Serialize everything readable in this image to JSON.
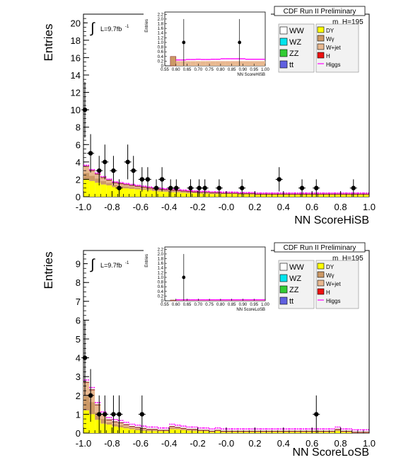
{
  "chart_data": [
    {
      "type": "bar",
      "title": "CDF Run II Preliminary",
      "mass_label": "m_H=195",
      "lumi_label": "L=9.7fb",
      "lumi_sup": "-1",
      "xlabel": "NN ScoreHiSB",
      "ylabel": "Entries",
      "xlim": [
        -1.0,
        1.0
      ],
      "ylim": [
        0,
        21
      ],
      "xticks": [
        "-1.0",
        "-0.8",
        "-0.6",
        "-0.4",
        "-0.2",
        "-0.0",
        "0.2",
        "0.4",
        "0.6",
        "0.8",
        "1.0"
      ],
      "yticks": [
        "0",
        "2",
        "4",
        "6",
        "8",
        "10",
        "12",
        "14",
        "16",
        "18",
        "20"
      ],
      "legend_left": [
        "WW",
        "WZ",
        "ZZ",
        "tt"
      ],
      "legend_right": [
        "DY",
        "Wγ",
        "W+jet",
        "H",
        "Higgs"
      ],
      "data_points": [
        {
          "x": -0.99,
          "y": 10,
          "err": 3.2
        },
        {
          "x": -0.95,
          "y": 5,
          "err": 2.2
        },
        {
          "x": -0.89,
          "y": 3,
          "err": 1.7
        },
        {
          "x": -0.85,
          "y": 4,
          "err": 2.0
        },
        {
          "x": -0.79,
          "y": 3,
          "err": 1.7
        },
        {
          "x": -0.75,
          "y": 1,
          "err": 1.0
        },
        {
          "x": -0.69,
          "y": 4,
          "err": 2.0
        },
        {
          "x": -0.65,
          "y": 3,
          "err": 1.7
        },
        {
          "x": -0.59,
          "y": 2,
          "err": 1.4
        },
        {
          "x": -0.55,
          "y": 2,
          "err": 1.4
        },
        {
          "x": -0.49,
          "y": 1,
          "err": 1.0
        },
        {
          "x": -0.45,
          "y": 2,
          "err": 1.4
        },
        {
          "x": -0.39,
          "y": 1,
          "err": 1.0
        },
        {
          "x": -0.35,
          "y": 1,
          "err": 1.0
        },
        {
          "x": -0.25,
          "y": 1,
          "err": 1.0
        },
        {
          "x": -0.19,
          "y": 1,
          "err": 1.0
        },
        {
          "x": -0.15,
          "y": 1,
          "err": 1.0
        },
        {
          "x": -0.05,
          "y": 1,
          "err": 1.0
        },
        {
          "x": 0.11,
          "y": 1,
          "err": 1.0
        },
        {
          "x": 0.37,
          "y": 2,
          "err": 1.4
        },
        {
          "x": 0.53,
          "y": 1,
          "err": 1.0
        },
        {
          "x": 0.63,
          "y": 1,
          "err": 1.0
        },
        {
          "x": 0.89,
          "y": 1,
          "err": 1.0
        }
      ],
      "bg_total": [
        3.5,
        3.0,
        2.6,
        2.2,
        1.9,
        1.6,
        1.5,
        1.4,
        1.3,
        1.2,
        1.1,
        1.0,
        0.9,
        0.85,
        0.8,
        0.75,
        0.7,
        0.65,
        0.6,
        0.55,
        0.5,
        0.5,
        0.45,
        0.45,
        0.4,
        0.4,
        0.4,
        0.35,
        0.35,
        0.35,
        0.3,
        0.3,
        0.3,
        0.3,
        0.3,
        0.3,
        0.3,
        0.3,
        0.3,
        0.3,
        0.3,
        0.3,
        0.3,
        0.3,
        0.3,
        0.3,
        0.3,
        0.3,
        0.3,
        0.3
      ],
      "bg_yellow": [
        2.0,
        1.8,
        1.6,
        1.4,
        1.3,
        1.1,
        1.0,
        0.95,
        0.9,
        0.85,
        0.8,
        0.75,
        0.65,
        0.6,
        0.55,
        0.5,
        0.5,
        0.45,
        0.4,
        0.4,
        0.35,
        0.35,
        0.3,
        0.3,
        0.3,
        0.3,
        0.3,
        0.25,
        0.25,
        0.25,
        0.2,
        0.2,
        0.2,
        0.2,
        0.2,
        0.2,
        0.2,
        0.2,
        0.2,
        0.2,
        0.2,
        0.2,
        0.2,
        0.2,
        0.2,
        0.2,
        0.2,
        0.2,
        0.2,
        0.2
      ],
      "inset": {
        "xlabel": "NN ScoreHiSB",
        "ylabel": "Entries",
        "xticks": [
          "0.55",
          "0.60",
          "0.65",
          "0.70",
          "0.75",
          "0.80",
          "0.85",
          "0.90",
          "0.95",
          "1.00"
        ],
        "yticks": [
          "0",
          "0.2",
          "0.4",
          "0.6",
          "0.8",
          "1.0",
          "1.2",
          "1.4",
          "1.6",
          "1.8",
          "2.0",
          "2.2"
        ],
        "xlim": [
          0.55,
          1.0
        ],
        "ylim": [
          0,
          2.3
        ],
        "points": [
          {
            "x": 0.635,
            "y": 1,
            "err": 1.0
          },
          {
            "x": 0.885,
            "y": 1,
            "err": 1.0
          }
        ],
        "bg": [
          0.2,
          0.2,
          0.2,
          0.2,
          0.2,
          0.2,
          0.2,
          0.2,
          0.2,
          0.2,
          0.2,
          0.2,
          0.2,
          0.2,
          0.2,
          0.2,
          0.2,
          0.2
        ],
        "higgs": [
          0.25,
          0.25,
          0.27,
          0.27,
          0.28,
          0.27,
          0.27,
          0.28,
          0.28,
          0.3,
          0.3,
          0.3,
          0.3,
          0.3,
          0.28,
          0.28,
          0.28,
          0.28
        ],
        "first_bin": 0.4
      }
    },
    {
      "type": "bar",
      "title": "CDF Run II Preliminary",
      "mass_label": "m_H=195",
      "lumi_label": "L=9.7fb",
      "lumi_sup": "-1",
      "xlabel": "NN ScoreLoSB",
      "ylabel": "Entries",
      "xlim": [
        -1.0,
        1.0
      ],
      "ylim": [
        0,
        9.7
      ],
      "xticks": [
        "-1.0",
        "-0.8",
        "-0.6",
        "-0.4",
        "-0.2",
        "-0.0",
        "0.2",
        "0.4",
        "0.6",
        "0.8",
        "1.0"
      ],
      "yticks": [
        "0",
        "1",
        "2",
        "3",
        "4",
        "5",
        "6",
        "7",
        "8",
        "9"
      ],
      "legend_left": [
        "WW",
        "WZ",
        "ZZ",
        "tt"
      ],
      "legend_right": [
        "DY",
        "Wγ",
        "W+jet",
        "H",
        "Higgs"
      ],
      "data_points": [
        {
          "x": -0.99,
          "y": 4,
          "err": 2.0
        },
        {
          "x": -0.95,
          "y": 2,
          "err": 1.4
        },
        {
          "x": -0.89,
          "y": 1,
          "err": 1.0
        },
        {
          "x": -0.85,
          "y": 1,
          "err": 1.0
        },
        {
          "x": -0.79,
          "y": 1,
          "err": 1.0
        },
        {
          "x": -0.75,
          "y": 1,
          "err": 1.0
        },
        {
          "x": -0.59,
          "y": 1,
          "err": 1.0
        },
        {
          "x": 0.63,
          "y": 1,
          "err": 1.0
        }
      ],
      "bg_total": [
        2.7,
        2.3,
        1.5,
        1.0,
        0.7,
        0.6,
        0.55,
        0.45,
        0.35,
        0.3,
        0.25,
        0.2,
        0.2,
        0.15,
        0.15,
        0.35,
        0.3,
        0.25,
        0.2,
        0.2,
        0.15,
        0.15,
        0.1,
        0.15,
        0.1,
        0.1,
        0.1,
        0.1,
        0.1,
        0.1,
        0.1,
        0.1,
        0.1,
        0.1,
        0.1,
        0.1,
        0.1,
        0.1,
        0.1,
        0.1,
        0.1,
        0.1,
        0.1,
        0.1,
        0.2,
        0.1,
        0.1,
        0.05,
        0.05,
        0.05
      ],
      "bg_yellow": [
        1.2,
        1.0,
        0.7,
        0.5,
        0.45,
        0.35,
        0.3,
        0.25,
        0.2,
        0.15,
        0.12,
        0.1,
        0.1,
        0.1,
        0.1,
        0.2,
        0.2,
        0.15,
        0.12,
        0.1,
        0.1,
        0.1,
        0.05,
        0.1,
        0.05,
        0.05,
        0.05,
        0.05,
        0.05,
        0.05,
        0.05,
        0.05,
        0.05,
        0.05,
        0.05,
        0.05,
        0.05,
        0.05,
        0.05,
        0.05,
        0.05,
        0.05,
        0.05,
        0.05,
        0.1,
        0.05,
        0.05,
        0.0,
        0.0,
        0.0
      ],
      "inset": {
        "xlabel": "NN ScoreLoSB",
        "ylabel": "Entries",
        "xticks": [
          "0.55",
          "0.60",
          "0.65",
          "0.70",
          "0.75",
          "0.80",
          "0.85",
          "0.90",
          "0.95",
          "1.00"
        ],
        "yticks": [
          "0",
          "0.2",
          "0.4",
          "0.6",
          "0.8",
          "1.0",
          "1.2",
          "1.4",
          "1.6",
          "1.8",
          "2.0",
          "2.2"
        ],
        "xlim": [
          0.55,
          1.0
        ],
        "ylim": [
          0,
          2.3
        ],
        "points": [
          {
            "x": 0.635,
            "y": 1,
            "err": 1.0
          }
        ],
        "bg": [
          0.03,
          0.03,
          0.03,
          0.03,
          0.03,
          0.03,
          0.03,
          0.03,
          0.03,
          0.03,
          0.03,
          0.03,
          0.03,
          0.03,
          0.03,
          0.03,
          0.03,
          0.03
        ],
        "higgs": [
          0.04,
          0.04,
          0.04,
          0.04,
          0.04,
          0.04,
          0.04,
          0.04,
          0.04,
          0.04,
          0.04,
          0.04,
          0.04,
          0.04,
          0.04,
          0.04,
          0.04,
          0.04
        ],
        "first_bin": 0.03
      }
    }
  ],
  "colors": {
    "WW": "#ffffff",
    "WZ": "#00e5ee",
    "ZZ": "#33cc33",
    "tt": "#6060e0",
    "DY": "#ffff00",
    "Wg": "#cc9966",
    "Wjet": "#e8b890",
    "H": "#ee1111",
    "Higgs": "#ff00ff",
    "dark": "#8b2a2a"
  }
}
